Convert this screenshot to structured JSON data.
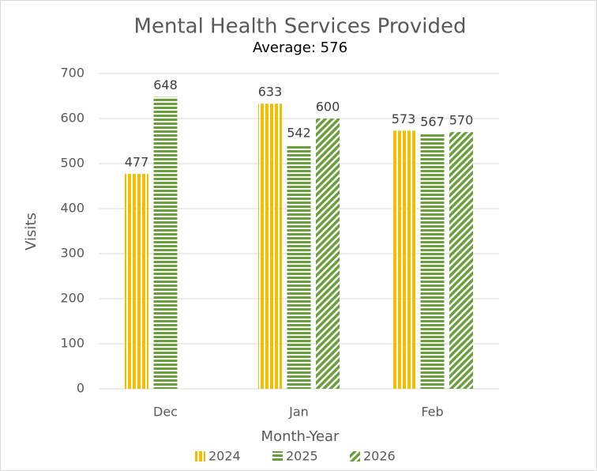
{
  "chart_data": {
    "type": "bar",
    "title": "Mental Health Services Provided",
    "subtitle": "Average: 576",
    "x_label": "Month-Year",
    "y_label": "Visits",
    "categories": [
      "Dec",
      "Jan",
      "Feb"
    ],
    "series": [
      {
        "name": "2024",
        "color": "#f0c000",
        "pattern": "vertical",
        "values": [
          477,
          633,
          573
        ]
      },
      {
        "name": "2025",
        "color": "#6aa03c",
        "pattern": "horizontal",
        "values": [
          648,
          542,
          567
        ]
      },
      {
        "name": "2026",
        "color": "#6aa03c",
        "pattern": "diagonal",
        "values": [
          null,
          600,
          570
        ]
      }
    ],
    "ylim": [
      0,
      700
    ],
    "yticks": [
      0,
      100,
      200,
      300,
      400,
      500,
      600,
      700
    ],
    "grid": true,
    "legend": "bottom"
  }
}
